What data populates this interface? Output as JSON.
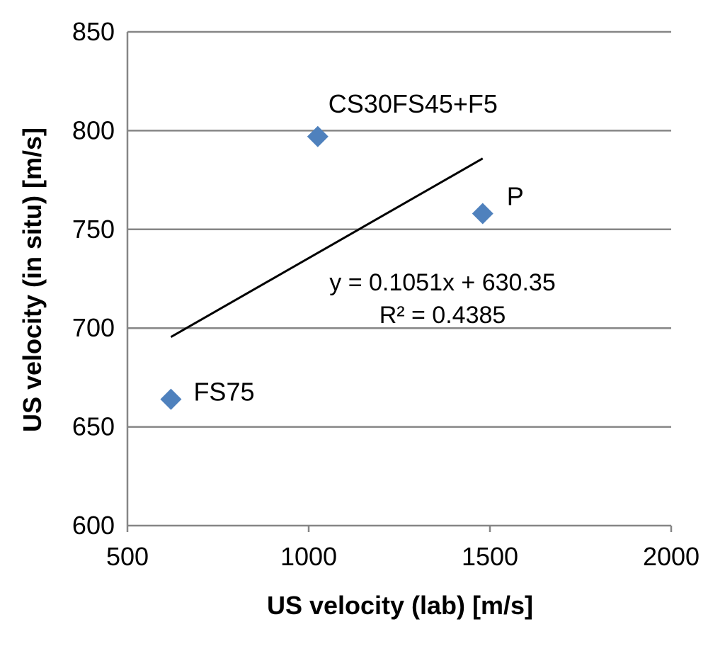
{
  "chart_data": {
    "type": "scatter",
    "xlabel": "US velocity (lab) [m/s]",
    "ylabel": "US velocity (in situ) [m/s]",
    "xlim": [
      500,
      2000
    ],
    "ylim": [
      600,
      850
    ],
    "xticks": [
      500,
      1000,
      1500,
      2000
    ],
    "yticks": [
      600,
      650,
      700,
      750,
      800,
      850
    ],
    "grid": "horizontal",
    "marker_color": "#4F81BD",
    "points": [
      {
        "label": "CS30FS45+F5",
        "x": 1025,
        "y": 797
      },
      {
        "label": "P",
        "x": 1480,
        "y": 758
      },
      {
        "label": "FS75",
        "x": 620,
        "y": 664
      }
    ],
    "trendline": {
      "slope": 0.1051,
      "intercept": 630.35,
      "x_range": [
        620,
        1480
      ],
      "color": "#000000",
      "equation_text": "y = 0.1051x + 630.35",
      "r2_text": "R² = 0.4385"
    }
  }
}
